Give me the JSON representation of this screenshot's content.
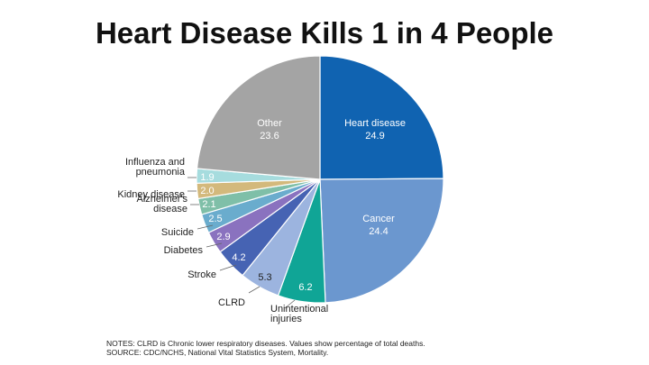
{
  "title": "Heart Disease Kills 1 in 4 People",
  "notes": [
    "NOTES: CLRD is Chronic lower respiratory diseases. Values show percentage of total deaths.",
    "SOURCE: CDC/NCHS, National Vital Statistics System, Mortality."
  ],
  "chart_data": {
    "type": "pie",
    "title": "Heart Disease Kills 1 in 4 People",
    "unit": "percentage of total deaths",
    "slices": [
      {
        "label": "Heart disease",
        "value": 24.9,
        "color": "#1063b1"
      },
      {
        "label": "Cancer",
        "value": 24.4,
        "color": "#6b97cf"
      },
      {
        "label": "Unintentional injuries",
        "value": 6.2,
        "color": "#10a596"
      },
      {
        "label": "CLRD",
        "value": 5.3,
        "color": "#9cb4df"
      },
      {
        "label": "Stroke",
        "value": 4.2,
        "color": "#4663b3"
      },
      {
        "label": "Diabetes",
        "value": 2.9,
        "color": "#8a72bf"
      },
      {
        "label": "Suicide",
        "value": 2.5,
        "color": "#6aaccd"
      },
      {
        "label": "Alzheimer's disease",
        "value": 2.1,
        "color": "#7fbfa8"
      },
      {
        "label": "Kidney disease",
        "value": 2.0,
        "color": "#d3b97c"
      },
      {
        "label": "Influenza and pneumonia",
        "value": 1.9,
        "color": "#a6dcde"
      },
      {
        "label": "Other",
        "value": 23.6,
        "color": "#a4a4a4"
      }
    ]
  }
}
